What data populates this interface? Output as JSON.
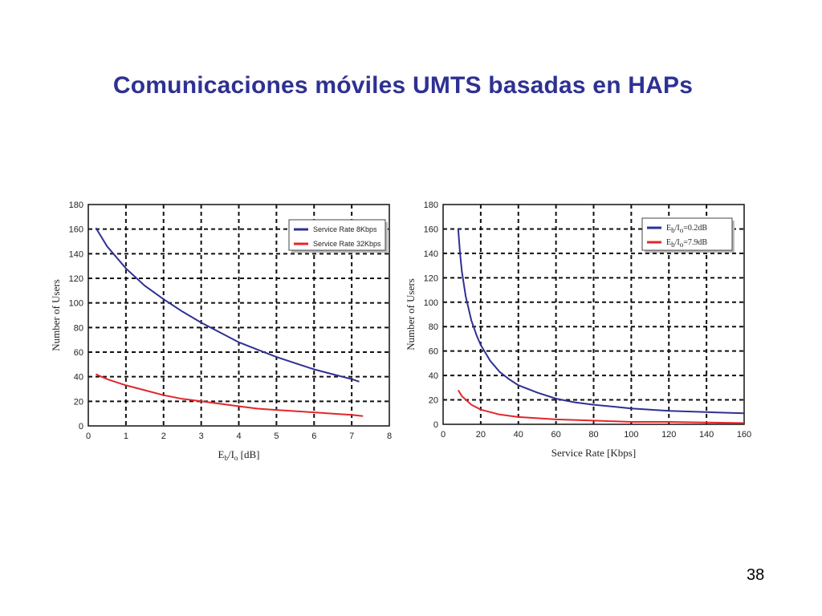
{
  "slide": {
    "title": "Comunicaciones móviles UMTS basadas en HAPs",
    "page_number": "38"
  },
  "chart_data": [
    {
      "type": "line",
      "xlabel": "E",
      "xlabel_sub1": "b",
      "xlabel_mid": "/I",
      "xlabel_sub2": "o",
      "xlabel_tail": " [dB]",
      "ylabel": "Number of Users",
      "xlim": [
        0,
        8
      ],
      "ylim": [
        0,
        180
      ],
      "xticks": [
        "0",
        "1",
        "2",
        "3",
        "4",
        "5",
        "6",
        "7",
        "8"
      ],
      "yticks": [
        "0",
        "20",
        "40",
        "60",
        "80",
        "100",
        "120",
        "140",
        "160",
        "180"
      ],
      "grid": true,
      "legend_position": "top-right",
      "series": [
        {
          "name": "Service Rate 8Kbps",
          "color": "#2e3192",
          "x": [
            0.2,
            0.5,
            1,
            1.5,
            2,
            2.5,
            3,
            3.5,
            4,
            4.5,
            5,
            5.5,
            6,
            6.5,
            7,
            7.2
          ],
          "y": [
            161,
            146,
            128,
            114,
            103,
            93,
            84,
            76,
            68,
            62,
            56,
            51,
            46,
            42,
            38,
            36
          ]
        },
        {
          "name": "Service Rate 32Kbps",
          "color": "#e3262a",
          "x": [
            0.2,
            0.5,
            1,
            1.5,
            2,
            2.5,
            3,
            3.5,
            4,
            4.5,
            5,
            5.5,
            6,
            6.5,
            7,
            7.3
          ],
          "y": [
            42,
            38,
            33,
            29,
            25,
            22,
            20,
            18,
            16,
            14,
            13,
            12,
            11,
            10,
            9,
            8
          ]
        }
      ]
    },
    {
      "type": "line",
      "xlabel": "Service Rate [Kbps]",
      "ylabel": "Number of Users",
      "xlim": [
        0,
        160
      ],
      "ylim": [
        0,
        180
      ],
      "xticks": [
        "0",
        "20",
        "40",
        "60",
        "80",
        "100",
        "120",
        "140",
        "160"
      ],
      "yticks": [
        "0",
        "20",
        "40",
        "60",
        "80",
        "100",
        "120",
        "140",
        "160",
        "180"
      ],
      "grid": true,
      "legend_position": "top-right",
      "series": [
        {
          "name_main": "E",
          "name_sub1": "b",
          "name_mid": "/I",
          "name_sub2": "o",
          "name_tail": "=0.2dB",
          "color": "#2e3192",
          "x": [
            8,
            9,
            10,
            12,
            15,
            18,
            20,
            25,
            30,
            35,
            40,
            50,
            60,
            70,
            80,
            100,
            120,
            140,
            160
          ],
          "y": [
            160,
            140,
            125,
            105,
            85,
            72,
            65,
            52,
            43,
            37,
            32,
            26,
            21,
            18,
            16,
            13,
            11,
            10,
            9
          ]
        },
        {
          "name_main": "E",
          "name_sub1": "b",
          "name_mid": "/I",
          "name_sub2": "o",
          "name_tail": "=7.9dB",
          "color": "#e3262a",
          "x": [
            8,
            10,
            15,
            20,
            30,
            40,
            60,
            80,
            100,
            120,
            140,
            160
          ],
          "y": [
            28,
            23,
            16,
            12,
            8,
            6,
            4,
            3,
            2,
            2,
            1.5,
            1
          ]
        }
      ]
    }
  ]
}
